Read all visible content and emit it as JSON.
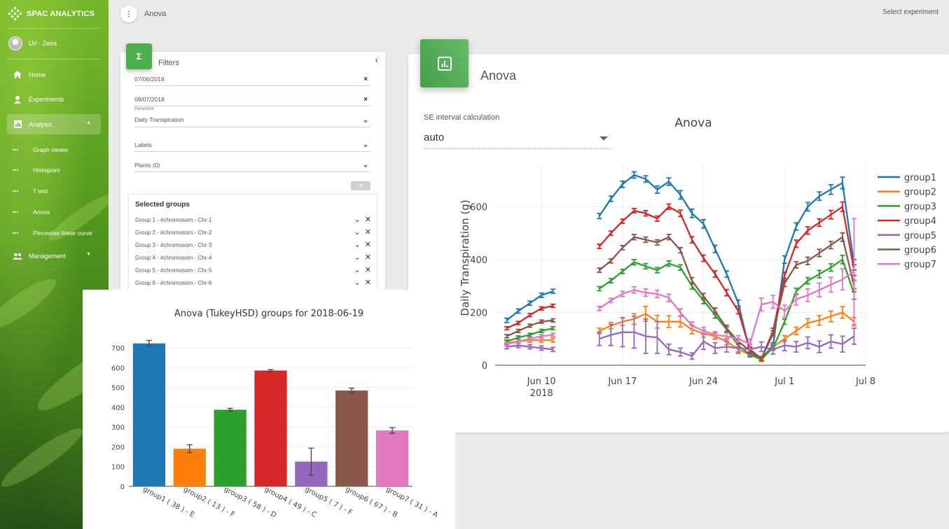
{
  "app": {
    "brand": "SPAC ANALYTICS"
  },
  "user": {
    "name": "Uri - Zeira"
  },
  "nav": {
    "home": "Home",
    "experiments": "Experiments",
    "analysis": "Analysis",
    "sub": [
      "Graph viewer",
      "Histogram",
      "T test",
      "Anova",
      "Piecewise linear curve"
    ],
    "management": "Management"
  },
  "topbar": {
    "breadcrumb": "Anova",
    "select_experiment": "Select experiment"
  },
  "filters": {
    "title": "Filters",
    "start_date": "07/06/2018",
    "end_date": "09/07/2018",
    "parameter_label": "Parameter",
    "parameter_value": "Daily Transpiration",
    "labels_placeholder": "Labels",
    "plants_placeholder": "Plants (0)",
    "add_label": "+",
    "selected_groups_title": "Selected groups",
    "groups": [
      "Group 1 - #chromosom - Chr-1",
      "Group 2 - #chromosom - Chr-2",
      "Group 3 - #chromosom - Chr-3",
      "Group 4 - #chromosom - Chr-4",
      "Group 5 - #chromosom - Chr-5",
      "Group 6 - #chromosom - Chr-6"
    ]
  },
  "anova": {
    "card_title": "Anova",
    "se_label": "SE interval calculation",
    "se_value": "auto"
  },
  "colors": {
    "accent": "#4caf50",
    "brand_green": "#5da424"
  },
  "chart_data": [
    {
      "type": "line",
      "title": "Anova",
      "xlabel": "",
      "ylabel": "Daily Transpiration (g)",
      "x_ticks": [
        "Jun 10\n2018",
        "Jun 17",
        "Jun 24",
        "Jul 1",
        "Jul 8"
      ],
      "y_ticks": [
        0,
        200,
        400,
        600
      ],
      "ylim": [
        0,
        760
      ],
      "x_range": [
        "2018-06-06",
        "2018-07-08"
      ],
      "legend_position": "right",
      "grid": true,
      "x": [
        "2018-06-07",
        "2018-06-08",
        "2018-06-09",
        "2018-06-10",
        "2018-06-11",
        "2018-06-12",
        "2018-06-13",
        "2018-06-15",
        "2018-06-16",
        "2018-06-17",
        "2018-06-18",
        "2018-06-19",
        "2018-06-20",
        "2018-06-21",
        "2018-06-22",
        "2018-06-23",
        "2018-06-24",
        "2018-06-25",
        "2018-06-26",
        "2018-06-27",
        "2018-06-28",
        "2018-06-29",
        "2018-06-30",
        "2018-07-01",
        "2018-07-02",
        "2018-07-03",
        "2018-07-04",
        "2018-07-05",
        "2018-07-06",
        "2018-07-07",
        "2018-07-08"
      ],
      "series": [
        {
          "name": "group1",
          "color": "#1f77b4",
          "values": [
            170,
            205,
            235,
            265,
            280,
            null,
            null,
            565,
            630,
            685,
            720,
            705,
            665,
            695,
            645,
            575,
            535,
            440,
            345,
            235,
            50,
            25,
            75,
            400,
            525,
            600,
            640,
            665,
            690,
            380,
            null
          ],
          "err": [
            8,
            8,
            8,
            8,
            8,
            null,
            null,
            10,
            10,
            12,
            12,
            12,
            14,
            14,
            16,
            16,
            16,
            14,
            12,
            12,
            12,
            8,
            10,
            14,
            14,
            16,
            16,
            18,
            22,
            20,
            null
          ]
        },
        {
          "name": "group2",
          "color": "#ff7f0e",
          "values": [
            85,
            90,
            95,
            95,
            95,
            null,
            null,
            130,
            150,
            165,
            175,
            195,
            165,
            165,
            165,
            135,
            120,
            110,
            90,
            60,
            40,
            20,
            70,
            100,
            130,
            160,
            170,
            185,
            200,
            165,
            null
          ],
          "err": [
            8,
            8,
            8,
            8,
            8,
            null,
            null,
            10,
            12,
            14,
            20,
            28,
            24,
            22,
            20,
            16,
            14,
            12,
            12,
            10,
            8,
            6,
            10,
            12,
            14,
            16,
            18,
            20,
            22,
            16,
            null
          ]
        },
        {
          "name": "group3",
          "color": "#2ca02c",
          "values": [
            90,
            105,
            115,
            130,
            140,
            null,
            null,
            290,
            320,
            355,
            390,
            375,
            360,
            385,
            370,
            300,
            245,
            190,
            135,
            75,
            40,
            25,
            65,
            165,
            280,
            320,
            345,
            370,
            400,
            270,
            null
          ],
          "err": [
            6,
            6,
            6,
            6,
            6,
            null,
            null,
            8,
            8,
            8,
            10,
            10,
            10,
            10,
            10,
            12,
            12,
            12,
            10,
            8,
            8,
            6,
            8,
            10,
            12,
            12,
            14,
            14,
            16,
            20,
            null
          ]
        },
        {
          "name": "group4",
          "color": "#d62728",
          "values": [
            140,
            160,
            190,
            215,
            225,
            null,
            null,
            450,
            500,
            545,
            585,
            575,
            555,
            600,
            575,
            475,
            405,
            345,
            275,
            205,
            60,
            25,
            130,
            340,
            460,
            510,
            540,
            570,
            600,
            360,
            null
          ],
          "err": [
            6,
            6,
            6,
            6,
            6,
            null,
            null,
            8,
            8,
            8,
            8,
            10,
            10,
            10,
            12,
            12,
            12,
            12,
            12,
            10,
            10,
            8,
            10,
            12,
            14,
            14,
            14,
            16,
            18,
            20,
            null
          ]
        },
        {
          "name": "group5",
          "color": "#9467bd",
          "values": [
            70,
            75,
            70,
            65,
            60,
            null,
            null,
            100,
            115,
            125,
            125,
            110,
            105,
            60,
            50,
            35,
            90,
            65,
            70,
            65,
            60,
            70,
            60,
            75,
            70,
            85,
            70,
            90,
            80,
            110,
            null
          ],
          "err": [
            8,
            8,
            8,
            8,
            8,
            null,
            null,
            25,
            40,
            55,
            60,
            65,
            60,
            20,
            15,
            12,
            30,
            20,
            20,
            20,
            20,
            18,
            18,
            20,
            20,
            22,
            22,
            25,
            30,
            30,
            null
          ]
        },
        {
          "name": "group6",
          "color": "#8c564b",
          "values": [
            110,
            130,
            150,
            165,
            170,
            null,
            null,
            360,
            395,
            445,
            485,
            475,
            465,
            485,
            435,
            320,
            260,
            205,
            140,
            90,
            55,
            25,
            120,
            310,
            380,
            395,
            425,
            455,
            485,
            300,
            null
          ],
          "err": [
            6,
            6,
            6,
            6,
            6,
            null,
            null,
            8,
            8,
            8,
            10,
            10,
            10,
            10,
            10,
            12,
            12,
            12,
            12,
            10,
            10,
            8,
            10,
            12,
            12,
            14,
            14,
            14,
            16,
            22,
            null
          ]
        },
        {
          "name": "group7",
          "color": "#e377c2",
          "values": [
            80,
            90,
            100,
            110,
            115,
            null,
            null,
            215,
            245,
            270,
            285,
            275,
            270,
            255,
            200,
            150,
            130,
            115,
            110,
            100,
            80,
            230,
            240,
            205,
            250,
            265,
            285,
            305,
            325,
            355,
            null
          ],
          "err": [
            6,
            6,
            6,
            6,
            6,
            null,
            null,
            8,
            8,
            10,
            12,
            14,
            14,
            14,
            14,
            14,
            14,
            12,
            12,
            12,
            20,
            24,
            24,
            22,
            22,
            24,
            26,
            28,
            40,
            200,
            null
          ]
        }
      ]
    },
    {
      "type": "bar",
      "title": "Anova (TukeyHSD) groups for 2018-06-19",
      "xlabel": "",
      "ylabel": "",
      "categories": [
        "group1 ( 38 ) - E",
        "group2 ( 13 ) - F",
        "group3 ( 58 ) - D",
        "group4 ( 49 ) - C",
        "group5 ( 7 ) - F",
        "group6 ( 67 ) - B",
        "group7 ( 31 ) - A"
      ],
      "values": [
        722,
        190,
        387,
        585,
        125,
        484,
        282
      ],
      "errors": [
        15,
        20,
        7,
        5,
        68,
        12,
        14
      ],
      "colors": [
        "#1f77b4",
        "#ff7f0e",
        "#2ca02c",
        "#d62728",
        "#9467bd",
        "#8c564b",
        "#e377c2"
      ],
      "y_ticks": [
        0,
        100,
        200,
        300,
        400,
        500,
        600,
        700
      ],
      "ylim": [
        0,
        760
      ],
      "grid": true
    }
  ]
}
